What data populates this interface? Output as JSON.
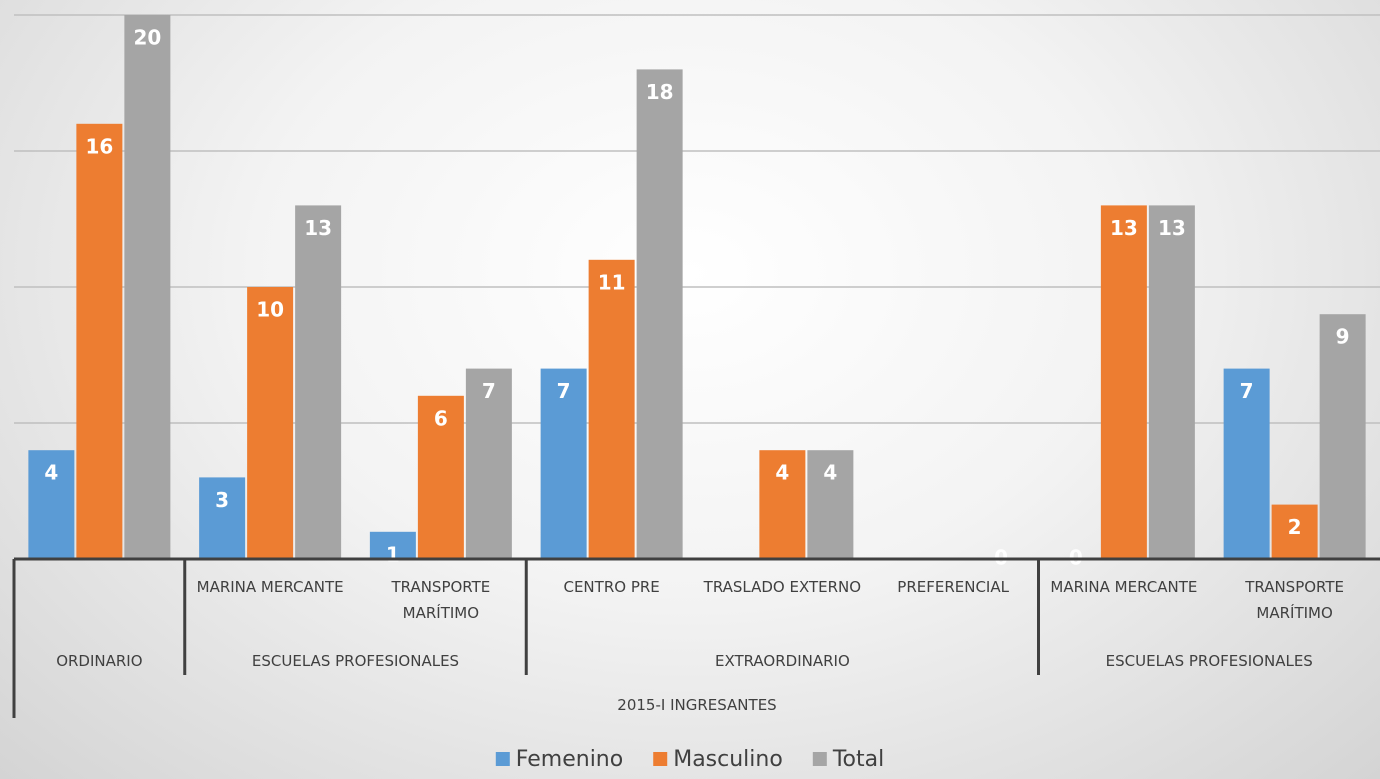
{
  "chart_data": {
    "type": "bar",
    "title": "2015-I INGRESANTES",
    "groups": [
      {
        "label": "ORDINARIO",
        "categories": [
          null
        ]
      },
      {
        "label": "ESCUELAS PROFESIONALES",
        "categories": [
          "MARINA MERCANTE",
          "TRANSPORTE MARÍTIMO"
        ]
      },
      {
        "label": "EXTRAORDINARIO",
        "categories": [
          "CENTRO PRE",
          "TRASLADO EXTERNO",
          "PREFERENCIAL"
        ]
      },
      {
        "label": "ESCUELAS PROFESIONALES",
        "categories": [
          "MARINA MERCANTE",
          "TRANSPORTE MARÍTIMO"
        ]
      }
    ],
    "series": [
      {
        "name": "Femenino",
        "color": "#5b9bd5",
        "values": [
          4,
          3,
          1,
          7,
          null,
          null,
          0,
          7
        ]
      },
      {
        "name": "Masculino",
        "color": "#ed7d31",
        "values": [
          16,
          10,
          6,
          11,
          4,
          null,
          13,
          2
        ]
      },
      {
        "name": "Total",
        "color": "#a5a5a5",
        "values": [
          20,
          13,
          7,
          18,
          4,
          0,
          13,
          9
        ]
      }
    ],
    "ylim": [
      0,
      20
    ],
    "yticks": [
      0,
      5,
      10,
      15,
      20
    ],
    "grid": true,
    "legend": "bottom"
  }
}
